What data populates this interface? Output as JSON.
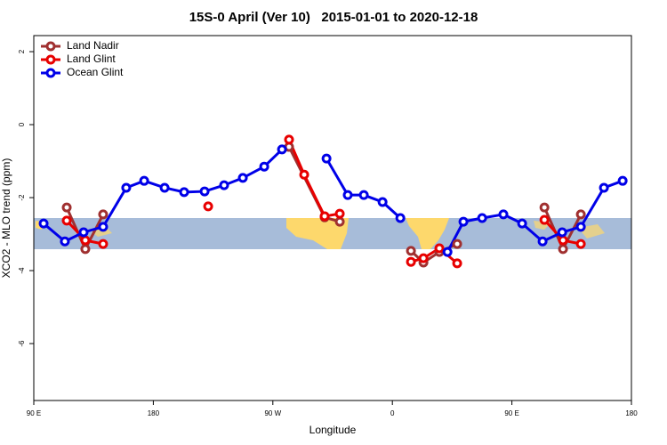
{
  "chart_data": {
    "type": "line",
    "title": "15S-0 April (Ver 10)   2015-01-01 to 2020-12-18",
    "x_label": "Longitude",
    "y_label": "XCO2 - MLO trend (ppm)",
    "xlim": [
      90,
      540
    ],
    "xticks": [
      {
        "value": 90,
        "label": "90 E"
      },
      180,
      {
        "value": 270,
        "label": "90 W"
      },
      {
        "value": 360,
        "label": "0"
      },
      {
        "value": 450,
        "label": "90 E"
      },
      {
        "value": 540,
        "label": "180"
      }
    ],
    "ylim": [
      -7.56,
      2.44
    ],
    "yticks": [
      2,
      0,
      -2,
      -4,
      -6
    ],
    "legend": "top-left",
    "series": [
      {
        "name": "Land Nadir",
        "color": "#a03030",
        "x": [
          114.8,
          128.8,
          142.2,
          null,
          282.2,
          309.0,
          320.4,
          null,
          374.0,
          383.4,
          395.4,
          408.8,
          null,
          474.5,
          488.5,
          501.9
        ],
        "values": [
          -2.27,
          -3.41,
          -2.46,
          null,
          -0.61,
          -2.54,
          -2.66,
          null,
          -3.46,
          -3.78,
          -3.49,
          -3.27,
          null,
          -2.27,
          -3.41,
          -2.46
        ]
      },
      {
        "name": "Land Glint",
        "color": "#e80000",
        "x": [
          114.8,
          128.8,
          142.2,
          null,
          221.3,
          null,
          282.2,
          293.6,
          309.0,
          320.4,
          null,
          374.0,
          383.4,
          395.4,
          408.8,
          null,
          474.5,
          488.5,
          501.9
        ],
        "values": [
          -2.63,
          -3.17,
          -3.27,
          null,
          -2.24,
          null,
          -0.41,
          -1.37,
          -2.51,
          -2.44,
          null,
          -3.76,
          -3.66,
          -3.39,
          -3.8,
          null,
          -2.61,
          -3.17,
          -3.27
        ]
      },
      {
        "name": "Ocean Glint",
        "color": "#0000e8",
        "x": [
          97.4,
          113.4,
          127.5,
          142.2,
          159.6,
          173.1,
          188.5,
          203.2,
          218.6,
          233.3,
          247.4,
          263.5,
          276.9,
          null,
          310.4,
          326.4,
          338.5,
          352.6,
          366.0,
          null,
          401.5,
          413.5,
          427.6,
          443.6,
          457.7,
          473.1,
          487.9,
          501.9,
          519.3,
          533.4
        ],
        "values": [
          -2.71,
          -3.2,
          -2.95,
          -2.8,
          -1.73,
          -1.54,
          -1.73,
          -1.85,
          -1.83,
          -1.66,
          -1.46,
          -1.15,
          -0.68,
          null,
          -0.93,
          -1.93,
          -1.93,
          -2.12,
          -2.56,
          null,
          -3.49,
          -2.66,
          -2.56,
          -2.46,
          -2.71,
          -3.2,
          -2.95,
          -2.8,
          -1.73,
          -1.54
        ]
      }
    ]
  }
}
